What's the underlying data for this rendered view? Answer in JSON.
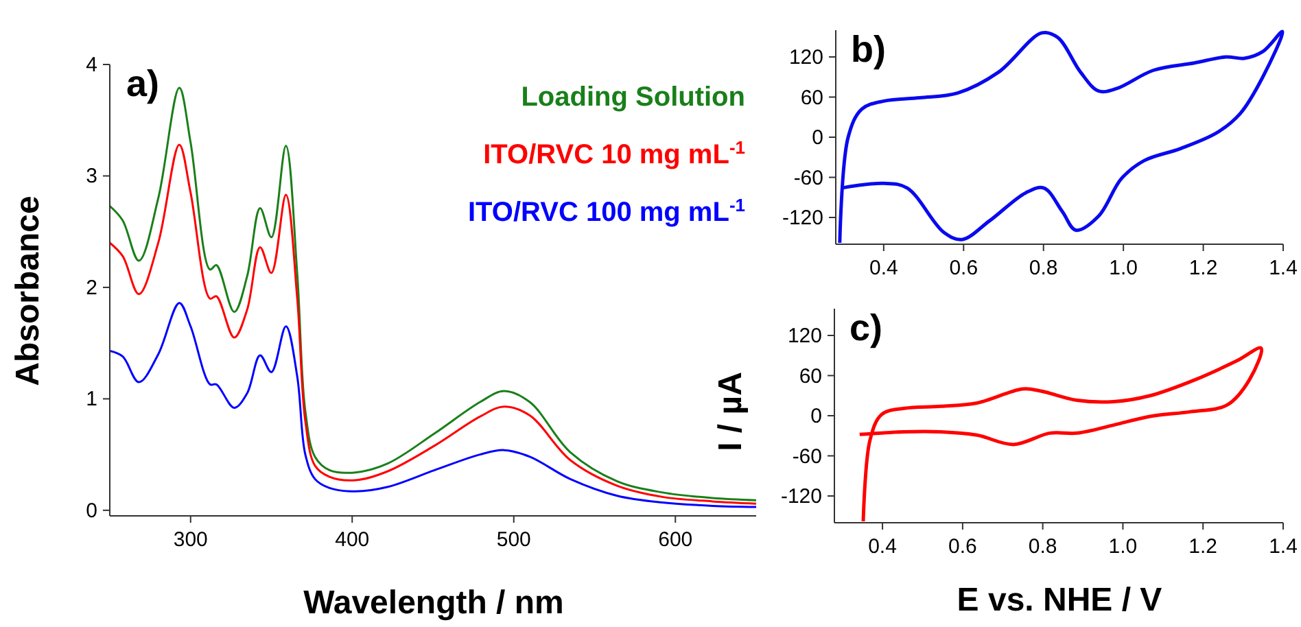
{
  "chart_data": [
    {
      "type": "line",
      "title": "a)",
      "xlabel": "Wavelength / nm",
      "ylabel": "Absorbance",
      "xlim": [
        250,
        650
      ],
      "ylim": [
        -0.05,
        4
      ],
      "xticks": [
        300,
        400,
        500,
        600
      ],
      "yticks": [
        0,
        1,
        2,
        3,
        4
      ],
      "legend": "top right",
      "x": [
        250,
        258,
        268,
        280,
        293,
        300,
        312,
        316,
        327,
        335,
        343,
        350,
        359,
        366,
        371,
        377,
        386,
        402,
        422,
        451,
        479,
        494,
        510,
        535,
        564,
        592,
        623,
        650
      ],
      "series": [
        {
          "name": "Loading Solution",
          "color": "#1a7f1a",
          "values": [
            2.73,
            2.6,
            2.24,
            2.8,
            3.79,
            3.3,
            2.16,
            2.2,
            1.78,
            2.1,
            2.71,
            2.45,
            3.27,
            2.12,
            0.89,
            0.48,
            0.36,
            0.34,
            0.42,
            0.69,
            0.97,
            1.07,
            0.97,
            0.52,
            0.26,
            0.16,
            0.11,
            0.09
          ]
        },
        {
          "name": "ITO/RVC 10 mg mL$^{-1}$",
          "color": "#ff0000",
          "values": [
            2.4,
            2.28,
            1.94,
            2.4,
            3.28,
            2.85,
            1.9,
            1.92,
            1.55,
            1.8,
            2.36,
            2.13,
            2.83,
            1.9,
            0.8,
            0.4,
            0.3,
            0.27,
            0.35,
            0.58,
            0.84,
            0.93,
            0.85,
            0.45,
            0.22,
            0.12,
            0.08,
            0.06
          ]
        },
        {
          "name": "ITO/RVC 100 mg mL$^{-1}$",
          "color": "#0000ff",
          "values": [
            1.43,
            1.38,
            1.15,
            1.4,
            1.86,
            1.65,
            1.13,
            1.13,
            0.92,
            1.05,
            1.39,
            1.24,
            1.65,
            1.2,
            0.5,
            0.28,
            0.2,
            0.17,
            0.21,
            0.36,
            0.5,
            0.54,
            0.48,
            0.28,
            0.13,
            0.07,
            0.04,
            0.03
          ]
        }
      ]
    },
    {
      "type": "line",
      "title": "b)",
      "xlim": [
        0.28,
        1.4
      ],
      "ylim": [
        -160,
        160
      ],
      "xticks": [
        {
          "value": 0.4,
          "label": "0.4"
        },
        {
          "value": 0.6,
          "label": "0.6"
        },
        {
          "value": 0.8,
          "label": "0.8"
        },
        {
          "value": 1,
          "label": "1.0"
        },
        {
          "value": 1.2,
          "label": "1.2"
        },
        {
          "value": 1.4,
          "label": "1.4"
        }
      ],
      "yticks": [
        -120,
        -60,
        0,
        60,
        120
      ],
      "series": [
        {
          "color": "#0a0aee",
          "x": [
            0.29,
            0.311,
            0.345,
            0.4,
            0.49,
            0.585,
            0.687,
            0.796,
            0.836,
            0.893,
            0.938,
            0.984,
            1.075,
            1.178,
            1.257,
            1.303,
            1.349,
            1.398,
            1.349,
            1.292,
            1.235,
            1.143,
            1.052,
            0.995,
            0.938,
            0.881,
            0.847,
            0.801,
            0.756,
            0.665,
            0.596,
            0.55,
            0.459,
            0.4,
            0.294
          ],
          "values": [
            -158,
            0,
            42,
            54,
            59,
            66,
            97,
            156,
            149,
            97,
            69,
            73,
            100,
            111,
            120,
            118,
            128,
            158,
            90,
            35,
            7,
            -17,
            -35,
            -62,
            -118,
            -139,
            -111,
            -76,
            -83,
            -125,
            -153,
            -142,
            -76,
            -69,
            -76
          ]
        }
      ]
    },
    {
      "type": "line",
      "title": "c)",
      "xlabel": "E vs. NHE / V",
      "ylabel": "I / µA",
      "xlim": [
        0.28,
        1.4
      ],
      "ylim": [
        -160,
        160
      ],
      "xticks": [
        {
          "value": 0.4,
          "label": "0.4"
        },
        {
          "value": 0.6,
          "label": "0.6"
        },
        {
          "value": 0.8,
          "label": "0.8"
        },
        {
          "value": 1,
          "label": "1.0"
        },
        {
          "value": 1.2,
          "label": "1.2"
        },
        {
          "value": 1.4,
          "label": "1.4"
        }
      ],
      "yticks": [
        -120,
        -60,
        0,
        60,
        120
      ],
      "series": [
        {
          "color": "#ff0000",
          "x": [
            0.352,
            0.369,
            0.398,
            0.454,
            0.545,
            0.636,
            0.75,
            0.795,
            0.886,
            0.977,
            1.068,
            1.181,
            1.284,
            1.345,
            1.316,
            1.26,
            1.169,
            1.068,
            0.977,
            0.886,
            0.818,
            0.727,
            0.636,
            0.545,
            0.454,
            0.343
          ],
          "values": [
            -158,
            -36,
            2,
            11,
            14,
            19,
            40,
            37,
            23,
            21,
            30,
            54,
            82,
            101,
            54,
            16,
            6,
            -1,
            -14,
            -26,
            -26,
            -43,
            -29,
            -24,
            -24,
            -28
          ]
        }
      ]
    }
  ]
}
